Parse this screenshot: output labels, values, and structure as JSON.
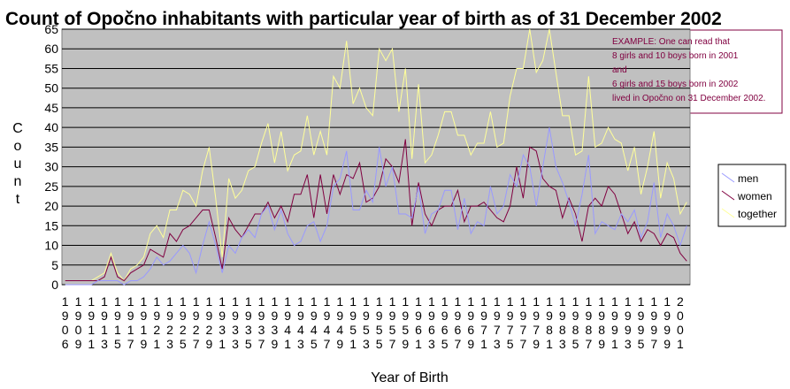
{
  "chart_data": {
    "type": "line",
    "title": "Count of Opočno inhabitants with particular year of birth as of 31 December 2002",
    "x_label": "Year of Birth",
    "y_label": "Count",
    "annotation": [
      "EXAMPLE: One can read that",
      "8 girls and 10 boys born in 2001",
      "and",
      "6 girls and 15 boys born in 2002",
      "lived in Opočno on 31 December 2002."
    ],
    "categories": [
      "1906",
      null,
      "1909",
      null,
      "1911",
      null,
      "1913",
      null,
      "1915",
      null,
      "1917",
      null,
      "1919",
      null,
      "1921",
      null,
      "1923",
      null,
      "1925",
      null,
      "1927",
      null,
      "1929",
      null,
      "1931",
      null,
      "1933",
      null,
      "1935",
      null,
      "1937",
      null,
      "1939",
      null,
      "1941",
      null,
      "1943",
      null,
      "1945",
      null,
      "1947",
      null,
      "1949",
      null,
      "1951",
      null,
      "1953",
      null,
      "1955",
      null,
      "1957",
      null,
      "1959",
      null,
      "1961",
      null,
      "1963",
      null,
      "1965",
      null,
      "1967",
      null,
      "1969",
      null,
      "1971",
      null,
      "1973",
      null,
      "1975",
      null,
      "1977",
      null,
      "1979",
      null,
      "1981",
      null,
      "1983",
      null,
      "1985",
      null,
      "1987",
      null,
      "1989",
      null,
      "1991",
      null,
      "1993",
      null,
      "1995",
      null,
      "1997",
      null,
      "1999",
      null,
      "2001",
      null
    ],
    "series": [
      {
        "name": "men",
        "color": "#9999ff",
        "values": [
          0,
          0,
          0,
          0,
          0,
          1,
          1,
          1,
          1,
          0,
          1,
          1,
          2,
          4,
          7,
          5,
          6,
          8,
          10,
          8,
          3,
          10,
          16,
          10,
          3,
          10,
          8,
          12,
          14,
          12,
          18,
          20,
          14,
          19,
          13,
          10,
          11,
          15,
          16,
          11,
          15,
          25,
          27,
          34,
          19,
          19,
          24,
          21,
          35,
          25,
          30,
          18,
          18,
          17,
          25,
          13,
          18,
          19,
          24,
          24,
          14,
          22,
          13,
          16,
          15,
          25,
          18,
          20,
          28,
          25,
          33,
          30,
          20,
          30,
          40,
          30,
          26,
          21,
          15,
          23,
          33,
          13,
          16,
          15,
          14,
          18,
          16,
          19,
          12,
          16,
          26,
          12,
          18,
          15,
          10,
          15
        ]
      },
      {
        "name": "women",
        "color": "#800040",
        "values": [
          1,
          1,
          1,
          1,
          1,
          1,
          2,
          7,
          2,
          1,
          3,
          4,
          5,
          9,
          8,
          7,
          13,
          11,
          14,
          15,
          17,
          19,
          19,
          12,
          4,
          17,
          14,
          12,
          15,
          18,
          18,
          21,
          17,
          20,
          16,
          23,
          23,
          28,
          17,
          28,
          18,
          28,
          23,
          28,
          27,
          31,
          21,
          22,
          25,
          32,
          30,
          26,
          37,
          15,
          26,
          18,
          15,
          19,
          20,
          20,
          24,
          16,
          20,
          20,
          21,
          19,
          17,
          16,
          20,
          30,
          22,
          35,
          34,
          27,
          25,
          24,
          17,
          22,
          18,
          11,
          20,
          22,
          20,
          25,
          23,
          18,
          13,
          16,
          11,
          14,
          13,
          10,
          13,
          12,
          8,
          6
        ]
      },
      {
        "name": "together",
        "color": "#ffff99",
        "values": [
          1,
          1,
          1,
          1,
          1,
          2,
          3,
          8,
          3,
          1,
          4,
          5,
          7,
          13,
          15,
          12,
          19,
          19,
          24,
          23,
          20,
          29,
          35,
          22,
          7,
          27,
          22,
          24,
          29,
          30,
          36,
          41,
          31,
          39,
          29,
          33,
          34,
          43,
          33,
          39,
          33,
          53,
          50,
          62,
          46,
          50,
          45,
          43,
          60,
          57,
          60,
          44,
          55,
          32,
          51,
          31,
          33,
          38,
          44,
          44,
          38,
          38,
          33,
          36,
          36,
          44,
          35,
          36,
          48,
          55,
          55,
          65,
          54,
          57,
          65,
          54,
          43,
          43,
          33,
          34,
          53,
          35,
          36,
          40,
          37,
          36,
          29,
          35,
          23,
          30,
          39,
          22,
          31,
          27,
          18,
          21
        ]
      }
    ],
    "ylim": [
      0,
      65
    ],
    "yticks": [
      0,
      5,
      10,
      15,
      20,
      25,
      30,
      35,
      40,
      45,
      50,
      55,
      60,
      65
    ],
    "grid": true,
    "plot_background": "#c0c0c0",
    "legend": "right"
  }
}
